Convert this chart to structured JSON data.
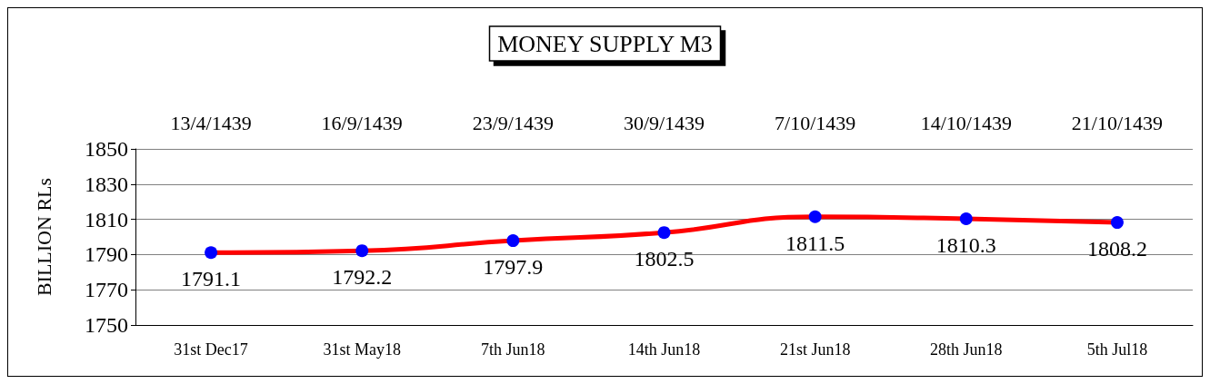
{
  "chart_data": {
    "type": "line",
    "title": "MONEY SUPPLY M3",
    "ylabel": "BILLION RLs",
    "categories": [
      "31st Dec17",
      "31st May18",
      "7th Jun18",
      "14th Jun18",
      "21st Jun18",
      "28th Jun18",
      "5th Jul18"
    ],
    "annotations": [
      "13/4/1439",
      "16/9/1439",
      "23/9/1439",
      "30/9/1439",
      "7/10/1439",
      "14/10/1439",
      "21/10/1439"
    ],
    "series": [
      {
        "color": "#ff0000",
        "colors": [
          "#0000ff",
          "#0000ff",
          "#0000ff",
          "#0000ff",
          "#0000ff",
          "#0000ff",
          "#0000ff"
        ],
        "values": [
          1791.1,
          1792.2,
          1797.9,
          1802.5,
          1811.5,
          1810.3,
          1808.2
        ]
      }
    ],
    "ylim": [
      1750,
      1850
    ],
    "yticks": [
      1750,
      1770,
      1790,
      1810,
      1830,
      1850
    ],
    "grid": "y",
    "marker": "circle",
    "line_style": "solid",
    "data_labels": true
  }
}
